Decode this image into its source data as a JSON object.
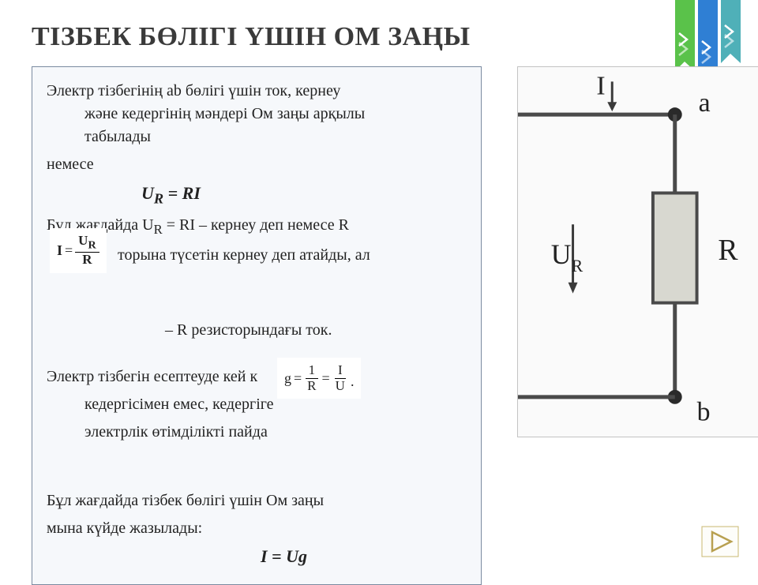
{
  "title": "ТІЗБЕК БӨЛІГІ ҮШІН ОМ ЗАҢЫ",
  "p1": "Электр тізбегінің ab бөлігі үшін ток, кернеу және кедергінің мәндері Ом заңы арқылы табылады",
  "p2": "немесе",
  "eq1_html": "U<sub>R</sub> = RI",
  "p3_html": "Бұл жағдайда U<sub>R</sub> = RI – кернеу деп немесе R",
  "p3b": "торына түсетін кернеу деп атайды, ал",
  "p4": "– R резисторындағы ток.",
  "p5": "Электр тізбегін есептеуде кей к",
  "p5b": "кедергісімен емес, кедергіге",
  "p5c": "электрлік өтімділікті пайда",
  "p6": "Бұл жағдайда тізбек бөлігі үшін Ом заңы",
  "p7": "мына күйде жазылады:",
  "eq_bottom": "I = Ug",
  "formula1": {
    "lhs": "I",
    "eq": "=",
    "num": "U<sub>R</sub>",
    "den": "R"
  },
  "formula2": {
    "lhs": "g",
    "eq": "=",
    "num1": "1",
    "den1": "R",
    "eq2": "=",
    "num2": "I",
    "den2": "U",
    "dot": "."
  },
  "circuit": {
    "label_I": "I",
    "label_a": "a",
    "label_b": "b",
    "label_UR": "U",
    "label_UR_sub": "R",
    "label_R": "R",
    "wire_color": "#4a4a4a",
    "node_color": "#2a2a2a",
    "resistor_fill": "#d8d8d0",
    "text_color": "#222222"
  },
  "ribbons": {
    "green": "#5ac24a",
    "blue": "#2f7fd4",
    "teal": "#4fb0b8",
    "chevron": "#ffffff"
  },
  "next_button": {
    "stroke": "#b8a050",
    "fill": "#fdfdfa"
  }
}
